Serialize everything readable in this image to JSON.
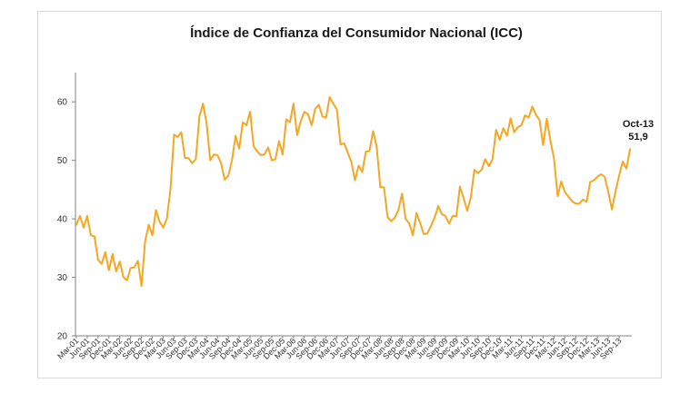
{
  "chart_data": {
    "type": "line",
    "title": "Índice de Confianza del Consumidor Nacional (ICC)",
    "xlabel": "",
    "ylabel": "",
    "ylim": [
      20,
      65
    ],
    "yticks": [
      20,
      30,
      40,
      50,
      60
    ],
    "grid": false,
    "legend": "none",
    "line_color": "#F5A623",
    "x_tick_labels": [
      "Mar-01",
      "Jun-01",
      "Sep-01",
      "Dec-01",
      "Mar-02",
      "Jun-02",
      "Sep-02",
      "Dec-02",
      "Mar-03",
      "Jun-03",
      "Sep-03",
      "Dec-03",
      "Mar-04",
      "Jun-04",
      "Sep-04",
      "Dec-04",
      "Mar-05",
      "Jun-05",
      "Sep-05",
      "Dec-05",
      "Mar-06",
      "Jun-06",
      "Sep-06",
      "Dec-06",
      "Mar-07",
      "Jun-07",
      "Sep-07",
      "Dec-07",
      "Mar-08",
      "Jun-08",
      "Sep-08",
      "Dec-08",
      "Mar-09",
      "Jun-09",
      "Sep-09",
      "Dec-09",
      "Mar-10",
      "Jun-10",
      "Sep-10",
      "Dec-10",
      "Mar-11",
      "Jun-11",
      "Sep-11",
      "Dec-11",
      "Mar-12",
      "Jun-12",
      "Sep-12",
      "Dec-12",
      "Mar-13",
      "Jun-13",
      "Sep-13"
    ],
    "x_start": "Mar-01",
    "x_end": "Oct-13",
    "values": [
      39.0,
      40.5,
      38.5,
      40.5,
      37.2,
      37.0,
      33.0,
      32.3,
      34.3,
      31.2,
      34.0,
      31.0,
      32.7,
      30.0,
      29.5,
      31.6,
      31.7,
      32.8,
      28.5,
      36.2,
      39.0,
      37.2,
      41.5,
      39.5,
      38.5,
      40.0,
      45.0,
      54.4,
      54.0,
      54.8,
      50.4,
      50.4,
      49.5,
      50.2,
      57.5,
      59.7,
      56.3,
      50.0,
      51.0,
      50.9,
      49.5,
      46.7,
      47.4,
      50.0,
      54.2,
      52.0,
      56.5,
      56.0,
      58.3,
      52.4,
      51.5,
      50.9,
      51.0,
      52.2,
      50.0,
      50.2,
      53.3,
      51.0,
      57.0,
      56.5,
      59.7,
      54.3,
      56.7,
      58.3,
      57.9,
      56.0,
      58.8,
      59.5,
      57.5,
      57.3,
      60.8,
      59.7,
      58.7,
      52.7,
      52.9,
      51.3,
      49.7,
      46.6,
      49.1,
      48.0,
      51.5,
      51.6,
      55.0,
      52.3,
      45.4,
      45.4,
      40.3,
      39.6,
      40.2,
      41.5,
      44.3,
      40.0,
      39.2,
      37.2,
      41.0,
      39.3,
      37.4,
      37.5,
      38.8,
      40.2,
      42.2,
      40.8,
      40.5,
      39.2,
      40.5,
      40.4,
      45.5,
      43.6,
      41.4,
      43.6,
      48.4,
      47.8,
      48.4,
      50.2,
      49.0,
      50.2,
      55.2,
      53.5,
      55.5,
      54.2,
      57.2,
      54.8,
      55.7,
      56.0,
      57.7,
      57.3,
      59.2,
      57.8,
      56.9,
      52.6,
      57.1,
      53.4,
      50.3,
      43.9,
      46.4,
      44.6,
      43.8,
      43.0,
      42.6,
      42.6,
      43.3,
      42.9,
      46.3,
      46.6,
      47.2,
      47.6,
      47.2,
      44.6,
      41.6,
      44.7,
      47.4,
      49.8,
      48.6,
      51.9
    ],
    "annotation": {
      "date": "Oct-13",
      "value": "51,9"
    }
  }
}
